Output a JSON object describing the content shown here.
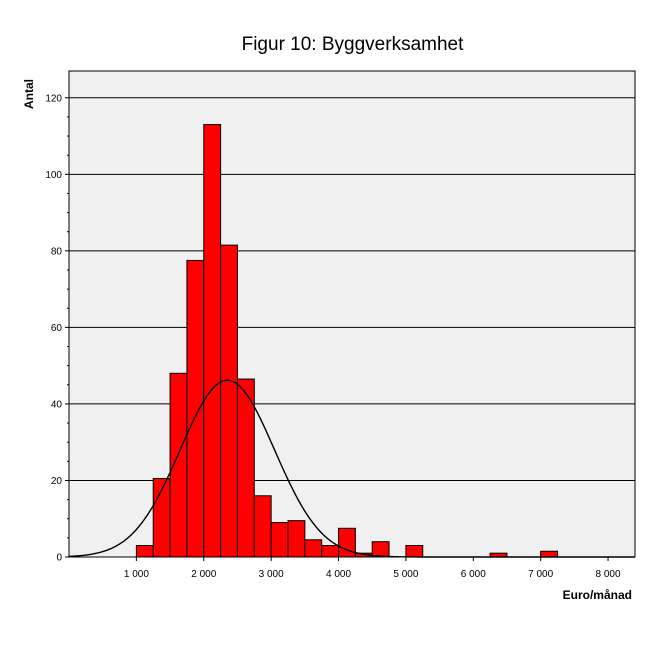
{
  "chart_data": {
    "type": "bar",
    "title": "Figur 10: Byggverksamhet",
    "xlabel": "Euro/månad",
    "ylabel": "Antal",
    "xlim": [
      0,
      8400
    ],
    "ylim": [
      0,
      127
    ],
    "x_ticks": [
      1000,
      2000,
      3000,
      4000,
      5000,
      6000,
      7000,
      8000
    ],
    "x_tick_labels": [
      "1 000",
      "2 000",
      "3 000",
      "4 000",
      "5 000",
      "6 000",
      "7 000",
      "8 000"
    ],
    "y_ticks": [
      0,
      20,
      40,
      60,
      80,
      100,
      120
    ],
    "y_tick_labels": [
      "0",
      "20",
      "40",
      "60",
      "80",
      "100",
      "120"
    ],
    "bin_width": 250,
    "bins": [
      {
        "start": 1000,
        "value": 3
      },
      {
        "start": 1250,
        "value": 20.5
      },
      {
        "start": 1500,
        "value": 48
      },
      {
        "start": 1750,
        "value": 77.5
      },
      {
        "start": 2000,
        "value": 113
      },
      {
        "start": 2250,
        "value": 81.5
      },
      {
        "start": 2500,
        "value": 46.5
      },
      {
        "start": 2750,
        "value": 16
      },
      {
        "start": 3000,
        "value": 9
      },
      {
        "start": 3250,
        "value": 9.5
      },
      {
        "start": 3500,
        "value": 4.5
      },
      {
        "start": 3750,
        "value": 3
      },
      {
        "start": 4000,
        "value": 7.5
      },
      {
        "start": 4250,
        "value": 1
      },
      {
        "start": 4500,
        "value": 4
      },
      {
        "start": 5000,
        "value": 3
      },
      {
        "start": 6250,
        "value": 1
      },
      {
        "start": 7000,
        "value": 1.5
      }
    ],
    "normal_curve": {
      "mean": 2350,
      "sd": 700,
      "peak": 46.2
    },
    "grid": true,
    "colors": {
      "bar": "#ff0000",
      "plot_background": "#f0f0f0",
      "curve": "#000000"
    }
  }
}
